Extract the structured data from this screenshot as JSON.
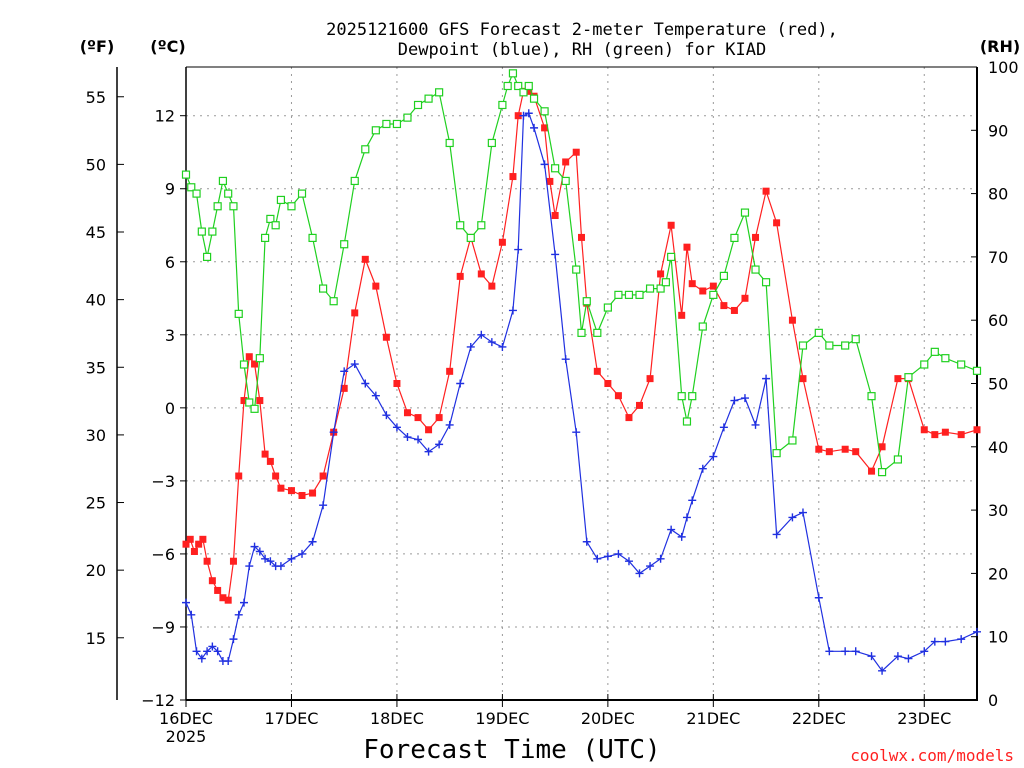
{
  "chart_data": {
    "type": "line",
    "title_line1": "2025121600 GFS Forecast 2-meter Temperature (red),",
    "title_line2": "Dewpoint (blue), RH (green) for KIAD",
    "xlabel": "Forecast Time (UTC)",
    "credit": "coolwx.com/models",
    "unit_f": "(ºF)",
    "unit_c": "(ºC)",
    "unit_rh": "(RH)",
    "grid": true,
    "x_unit": "days since 16DEC 2025 00Z",
    "xlim": [
      0,
      7.5
    ],
    "ylim_c": [
      -12,
      14
    ],
    "ylim_rh": [
      0,
      100
    ],
    "x_ticks": [
      {
        "x": 0,
        "label": "16DEC",
        "sub": "2025"
      },
      {
        "x": 1,
        "label": "17DEC",
        "sub": ""
      },
      {
        "x": 2,
        "label": "18DEC",
        "sub": ""
      },
      {
        "x": 3,
        "label": "19DEC",
        "sub": ""
      },
      {
        "x": 4,
        "label": "20DEC",
        "sub": ""
      },
      {
        "x": 5,
        "label": "21DEC",
        "sub": ""
      },
      {
        "x": 6,
        "label": "22DEC",
        "sub": ""
      },
      {
        "x": 7,
        "label": "23DEC",
        "sub": ""
      }
    ],
    "y_ticks_c": [
      -12,
      -9,
      -6,
      -3,
      0,
      3,
      6,
      9,
      12
    ],
    "y_ticks_f": [
      15,
      20,
      25,
      30,
      35,
      40,
      45,
      50,
      55
    ],
    "y_ticks_rh": [
      0,
      10,
      20,
      30,
      40,
      50,
      60,
      70,
      80,
      90,
      100
    ],
    "series": [
      {
        "name": "Temperature",
        "axis": "c",
        "color": "#ff2020",
        "marker": "square-filled",
        "x": [
          0,
          0.04,
          0.08,
          0.12,
          0.16,
          0.2,
          0.25,
          0.3,
          0.35,
          0.4,
          0.45,
          0.5,
          0.55,
          0.6,
          0.65,
          0.7,
          0.75,
          0.8,
          0.85,
          0.9,
          1.0,
          1.1,
          1.2,
          1.3,
          1.4,
          1.5,
          1.6,
          1.7,
          1.8,
          1.9,
          2.0,
          2.1,
          2.2,
          2.3,
          2.4,
          2.5,
          2.6,
          2.7,
          2.8,
          2.9,
          3.0,
          3.1,
          3.15,
          3.2,
          3.25,
          3.3,
          3.4,
          3.45,
          3.5,
          3.6,
          3.7,
          3.75,
          3.8,
          3.9,
          4.0,
          4.1,
          4.2,
          4.3,
          4.4,
          4.5,
          4.6,
          4.7,
          4.75,
          4.8,
          4.9,
          5.0,
          5.1,
          5.2,
          5.3,
          5.4,
          5.5,
          5.6,
          5.75,
          5.85,
          6.0,
          6.1,
          6.25,
          6.35,
          6.5,
          6.6,
          6.75,
          6.85,
          7.0,
          7.1,
          7.2,
          7.35,
          7.5
        ],
        "y": [
          -5.6,
          -5.4,
          -5.9,
          -5.6,
          -5.4,
          -6.3,
          -7.1,
          -7.5,
          -7.8,
          -7.9,
          -6.3,
          -2.8,
          0.3,
          2.1,
          1.8,
          0.3,
          -1.9,
          -2.2,
          -2.8,
          -3.3,
          -3.4,
          -3.6,
          -3.5,
          -2.8,
          -1.0,
          0.8,
          3.9,
          6.1,
          5.0,
          2.9,
          1.0,
          -0.2,
          -0.4,
          -0.9,
          -0.4,
          1.5,
          5.4,
          7.0,
          5.5,
          5.0,
          6.8,
          9.5,
          12.0,
          13.0,
          13.0,
          12.8,
          11.5,
          9.3,
          7.9,
          10.1,
          10.5,
          7.0,
          4.3,
          1.5,
          1.0,
          0.5,
          -0.4,
          0.1,
          1.2,
          5.5,
          7.5,
          3.8,
          6.6,
          5.1,
          4.8,
          5.0,
          4.2,
          4.0,
          4.5,
          7.0,
          8.9,
          7.6,
          3.6,
          1.2,
          -1.7,
          -1.8,
          -1.7,
          -1.8,
          -2.6,
          -1.6,
          1.2,
          1.2,
          -0.9,
          -1.1,
          -1.0,
          -1.1,
          -0.9
        ]
      },
      {
        "name": "Dewpoint",
        "axis": "c",
        "color": "#2030e0",
        "marker": "plus",
        "x": [
          0,
          0.05,
          0.1,
          0.15,
          0.2,
          0.25,
          0.3,
          0.35,
          0.4,
          0.45,
          0.5,
          0.55,
          0.6,
          0.65,
          0.7,
          0.75,
          0.8,
          0.85,
          0.9,
          1.0,
          1.1,
          1.2,
          1.3,
          1.4,
          1.5,
          1.6,
          1.7,
          1.8,
          1.9,
          2.0,
          2.1,
          2.2,
          2.3,
          2.4,
          2.5,
          2.6,
          2.7,
          2.8,
          2.9,
          3.0,
          3.1,
          3.15,
          3.2,
          3.25,
          3.3,
          3.4,
          3.5,
          3.6,
          3.7,
          3.8,
          3.9,
          4.0,
          4.1,
          4.2,
          4.3,
          4.4,
          4.5,
          4.6,
          4.7,
          4.75,
          4.8,
          4.9,
          5.0,
          5.1,
          5.2,
          5.3,
          5.4,
          5.5,
          5.6,
          5.75,
          5.85,
          6.0,
          6.1,
          6.25,
          6.35,
          6.5,
          6.6,
          6.75,
          6.85,
          7.0,
          7.1,
          7.2,
          7.35,
          7.5
        ],
        "y": [
          -8.0,
          -8.5,
          -10.0,
          -10.3,
          -10.0,
          -9.8,
          -10.0,
          -10.4,
          -10.4,
          -9.5,
          -8.5,
          -8.0,
          -6.5,
          -5.7,
          -5.9,
          -6.2,
          -6.3,
          -6.5,
          -6.5,
          -6.2,
          -6.0,
          -5.5,
          -4.0,
          -1.0,
          1.5,
          1.8,
          1.0,
          0.5,
          -0.3,
          -0.8,
          -1.2,
          -1.3,
          -1.8,
          -1.5,
          -0.7,
          1.0,
          2.5,
          3.0,
          2.7,
          2.5,
          4.0,
          6.5,
          12.0,
          12.1,
          11.5,
          10.0,
          6.3,
          2.0,
          -1.0,
          -5.5,
          -6.2,
          -6.1,
          -6.0,
          -6.3,
          -6.8,
          -6.5,
          -6.2,
          -5.0,
          -5.3,
          -4.5,
          -3.8,
          -2.5,
          -2.0,
          -0.8,
          0.3,
          0.4,
          -0.7,
          1.2,
          -5.2,
          -4.5,
          -4.3,
          -7.8,
          -10.0,
          -10.0,
          -10.0,
          -10.2,
          -10.8,
          -10.2,
          -10.3,
          -10.0,
          -9.6,
          -9.6,
          -9.5,
          -9.2
        ]
      },
      {
        "name": "RH",
        "axis": "rh",
        "color": "#20d020",
        "marker": "square-open",
        "x": [
          0,
          0.05,
          0.1,
          0.15,
          0.2,
          0.25,
          0.3,
          0.35,
          0.4,
          0.45,
          0.5,
          0.55,
          0.6,
          0.65,
          0.7,
          0.75,
          0.8,
          0.85,
          0.9,
          1.0,
          1.1,
          1.2,
          1.3,
          1.4,
          1.5,
          1.6,
          1.7,
          1.8,
          1.9,
          2.0,
          2.1,
          2.2,
          2.3,
          2.4,
          2.5,
          2.6,
          2.7,
          2.8,
          2.9,
          3.0,
          3.05,
          3.1,
          3.15,
          3.2,
          3.25,
          3.3,
          3.4,
          3.5,
          3.6,
          3.7,
          3.75,
          3.8,
          3.9,
          4.0,
          4.1,
          4.2,
          4.3,
          4.4,
          4.5,
          4.55,
          4.6,
          4.7,
          4.75,
          4.8,
          4.9,
          5.0,
          5.1,
          5.2,
          5.3,
          5.4,
          5.5,
          5.6,
          5.75,
          5.85,
          6.0,
          6.1,
          6.25,
          6.35,
          6.5,
          6.6,
          6.75,
          6.85,
          7.0,
          7.1,
          7.2,
          7.35,
          7.5
        ],
        "y": [
          83,
          81,
          80,
          74,
          70,
          74,
          78,
          82,
          80,
          78,
          61,
          53,
          47,
          46,
          54,
          73,
          76,
          75,
          79,
          78,
          80,
          73,
          65,
          63,
          72,
          82,
          87,
          90,
          91,
          91,
          92,
          94,
          95,
          96,
          88,
          75,
          73,
          75,
          88,
          94,
          97,
          99,
          97,
          96,
          97,
          95,
          93,
          84,
          82,
          68,
          58,
          63,
          58,
          62,
          64,
          64,
          64,
          65,
          65,
          66,
          70,
          48,
          44,
          48,
          59,
          64,
          67,
          73,
          77,
          68,
          66,
          39,
          41,
          56,
          58,
          56,
          56,
          57,
          48,
          36,
          38,
          51,
          53,
          55,
          54,
          53,
          52
        ]
      }
    ]
  }
}
